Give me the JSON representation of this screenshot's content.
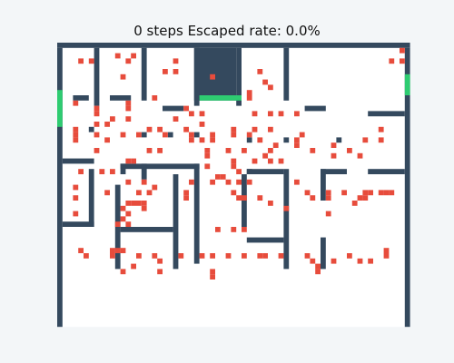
{
  "status": {
    "title": "0 steps Escaped rate: 0.0%",
    "steps": 0,
    "escaped_rate_percent": 0.0
  },
  "colors": {
    "background": "#f3f6f8",
    "floor": "#ffffff",
    "wall": "#34495e",
    "agent": "#e74c3c",
    "exit": "#2ecc71"
  },
  "maze": {
    "grid_cols": 67,
    "grid_rows": 54,
    "walls": [
      [
        0,
        0,
        67,
        1
      ],
      [
        0,
        1,
        1,
        53
      ],
      [
        66,
        1,
        1,
        53
      ],
      [
        7,
        1,
        1,
        11
      ],
      [
        16,
        1,
        1,
        10
      ],
      [
        26,
        1,
        1,
        11
      ],
      [
        34,
        1,
        1,
        11
      ],
      [
        43,
        1,
        1,
        10
      ],
      [
        3,
        10,
        3,
        1
      ],
      [
        10,
        10,
        4,
        1
      ],
      [
        20,
        12,
        4,
        1
      ],
      [
        47,
        12,
        4,
        1
      ],
      [
        59,
        13,
        7,
        1
      ],
      [
        6,
        16,
        1,
        1
      ],
      [
        16,
        17,
        1,
        1
      ],
      [
        21,
        17,
        1,
        1
      ],
      [
        26,
        17,
        1,
        1
      ],
      [
        36,
        18,
        1,
        1
      ],
      [
        43,
        18,
        1,
        1
      ],
      [
        53,
        18,
        1,
        1
      ],
      [
        1,
        22,
        6,
        1
      ],
      [
        12,
        23,
        15,
        1
      ],
      [
        12,
        23,
        1,
        2
      ],
      [
        16,
        23,
        1,
        3
      ],
      [
        26,
        23,
        1,
        19
      ],
      [
        6,
        24,
        1,
        11
      ],
      [
        11,
        27,
        1,
        16
      ],
      [
        22,
        25,
        1,
        18
      ],
      [
        35,
        25,
        1,
        10
      ],
      [
        36,
        24,
        1,
        1
      ],
      [
        36,
        24,
        7,
        1
      ],
      [
        43,
        24,
        1,
        19
      ],
      [
        50,
        24,
        1,
        6
      ],
      [
        50,
        24,
        5,
        1
      ],
      [
        59,
        24,
        7,
        1
      ],
      [
        1,
        34,
        6,
        1
      ],
      [
        12,
        35,
        10,
        1
      ],
      [
        36,
        37,
        7,
        1
      ],
      [
        50,
        37,
        1,
        6
      ]
    ],
    "exits": [
      [
        26,
        1,
        8,
        10
      ],
      [
        0,
        9,
        1,
        7
      ],
      [
        27,
        10,
        8,
        1
      ],
      [
        66,
        6,
        1,
        4
      ]
    ],
    "agents": [
      [
        65,
        1
      ],
      [
        4,
        3
      ],
      [
        6,
        3
      ],
      [
        11,
        2
      ],
      [
        14,
        2
      ],
      [
        22,
        3
      ],
      [
        13,
        3
      ],
      [
        63,
        3
      ],
      [
        65,
        3
      ],
      [
        20,
        5
      ],
      [
        22,
        5
      ],
      [
        12,
        6
      ],
      [
        29,
        6
      ],
      [
        38,
        5
      ],
      [
        39,
        7
      ],
      [
        40,
        8
      ],
      [
        36,
        9
      ],
      [
        36,
        10
      ],
      [
        3,
        11
      ],
      [
        7,
        12
      ],
      [
        7,
        13
      ],
      [
        13,
        11
      ],
      [
        13,
        12
      ],
      [
        18,
        10
      ],
      [
        24,
        12
      ],
      [
        25,
        13
      ],
      [
        27,
        13
      ],
      [
        27,
        15
      ],
      [
        37,
        13
      ],
      [
        40,
        13
      ],
      [
        42,
        13
      ],
      [
        45,
        13
      ],
      [
        7,
        15
      ],
      [
        10,
        14
      ],
      [
        9,
        15
      ],
      [
        13,
        14
      ],
      [
        22,
        14
      ],
      [
        3,
        16
      ],
      [
        3,
        17
      ],
      [
        7,
        17
      ],
      [
        12,
        17
      ],
      [
        15,
        17
      ],
      [
        17,
        16
      ],
      [
        19,
        16
      ],
      [
        24,
        16
      ],
      [
        25,
        18
      ],
      [
        29,
        17
      ],
      [
        33,
        16
      ],
      [
        33,
        17
      ],
      [
        36,
        17
      ],
      [
        37,
        16
      ],
      [
        40,
        16
      ],
      [
        46,
        17
      ],
      [
        61,
        16
      ],
      [
        3,
        18
      ],
      [
        9,
        18
      ],
      [
        27,
        18
      ],
      [
        29,
        18
      ],
      [
        38,
        18
      ],
      [
        45,
        18
      ],
      [
        7,
        20
      ],
      [
        19,
        20
      ],
      [
        28,
        20
      ],
      [
        32,
        20
      ],
      [
        35,
        20
      ],
      [
        40,
        20
      ],
      [
        41,
        19
      ],
      [
        45,
        19
      ],
      [
        48,
        20
      ],
      [
        52,
        19
      ],
      [
        55,
        20
      ],
      [
        58,
        18
      ],
      [
        61,
        18
      ],
      [
        14,
        22
      ],
      [
        13,
        22
      ],
      [
        28,
        21
      ],
      [
        33,
        22
      ],
      [
        37,
        22
      ],
      [
        39,
        21
      ],
      [
        40,
        22
      ],
      [
        42,
        22
      ],
      [
        52,
        21
      ],
      [
        57,
        21
      ],
      [
        4,
        24
      ],
      [
        8,
        24
      ],
      [
        10,
        24
      ],
      [
        28,
        23
      ],
      [
        33,
        23
      ],
      [
        34,
        24
      ],
      [
        30,
        25
      ],
      [
        31,
        25
      ],
      [
        32,
        26
      ],
      [
        34,
        26
      ],
      [
        36,
        26
      ],
      [
        25,
        26
      ],
      [
        13,
        26
      ],
      [
        16,
        26
      ],
      [
        18,
        27
      ],
      [
        29,
        26
      ],
      [
        3,
        27
      ],
      [
        9,
        28
      ],
      [
        17,
        28
      ],
      [
        15,
        28
      ],
      [
        24,
        28
      ],
      [
        33,
        28
      ],
      [
        35,
        29
      ],
      [
        34,
        29
      ],
      [
        38,
        29
      ],
      [
        45,
        26
      ],
      [
        47,
        28
      ],
      [
        48,
        29
      ],
      [
        51,
        28
      ],
      [
        51,
        29
      ],
      [
        54,
        28
      ],
      [
        57,
        29
      ],
      [
        58,
        28
      ],
      [
        3,
        29
      ],
      [
        13,
        30
      ],
      [
        14,
        30
      ],
      [
        15,
        30
      ],
      [
        16,
        30
      ],
      [
        24,
        29
      ],
      [
        12,
        31
      ],
      [
        16,
        31
      ],
      [
        12,
        33
      ],
      [
        3,
        32
      ],
      [
        13,
        32
      ],
      [
        11,
        34
      ],
      [
        13,
        34
      ],
      [
        30,
        35
      ],
      [
        33,
        35
      ],
      [
        35,
        35
      ],
      [
        40,
        30
      ],
      [
        43,
        31
      ],
      [
        51,
        32
      ],
      [
        56,
        30
      ],
      [
        61,
        28
      ],
      [
        62,
        28
      ],
      [
        63,
        28
      ],
      [
        4,
        39
      ],
      [
        5,
        40
      ],
      [
        10,
        39
      ],
      [
        11,
        39
      ],
      [
        12,
        39
      ],
      [
        10,
        40
      ],
      [
        15,
        40
      ],
      [
        18,
        40
      ],
      [
        19,
        41
      ],
      [
        23,
        40
      ],
      [
        27,
        40
      ],
      [
        29,
        40
      ],
      [
        32,
        40
      ],
      [
        35,
        40
      ],
      [
        38,
        40
      ],
      [
        39,
        40
      ],
      [
        42,
        40
      ],
      [
        47,
        40
      ],
      [
        48,
        41
      ],
      [
        52,
        41
      ],
      [
        55,
        40
      ],
      [
        57,
        41
      ],
      [
        59,
        41
      ],
      [
        62,
        39
      ],
      [
        14,
        42
      ],
      [
        19,
        43
      ],
      [
        12,
        43
      ],
      [
        29,
        43
      ],
      [
        29,
        44
      ],
      [
        49,
        43
      ],
      [
        49,
        42
      ],
      [
        59,
        28
      ],
      [
        58,
        29
      ],
      [
        62,
        40
      ],
      [
        20,
        17
      ],
      [
        25,
        17
      ],
      [
        17,
        20
      ]
    ]
  }
}
